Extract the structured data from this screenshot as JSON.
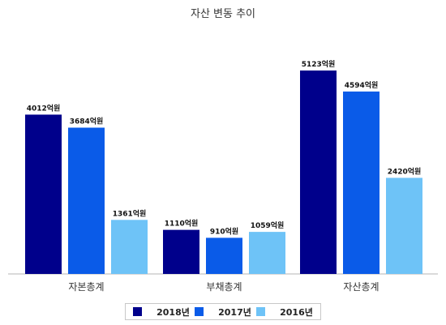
{
  "chart_data": {
    "type": "bar",
    "title": "자산 변동 추이",
    "categories": [
      "자본총계",
      "부채총계",
      "자산총계"
    ],
    "series": [
      {
        "name": "2018년",
        "values": [
          4012,
          1110,
          5123
        ],
        "labels": [
          "4012억원",
          "1110억원",
          "5123억원"
        ],
        "color": "#00008b"
      },
      {
        "name": "2017년",
        "values": [
          3684,
          910,
          4594
        ],
        "labels": [
          "3684억원",
          "910억원",
          "4594억원"
        ],
        "color": "#0a5be8"
      },
      {
        "name": "2016년",
        "values": [
          1361,
          1059,
          2420
        ],
        "labels": [
          "1361억원",
          "1059억원",
          "2420억원"
        ],
        "color": "#6ec3f7"
      }
    ],
    "ylim": [
      0,
      6000
    ],
    "grid": false,
    "legend_position": "bottom"
  }
}
